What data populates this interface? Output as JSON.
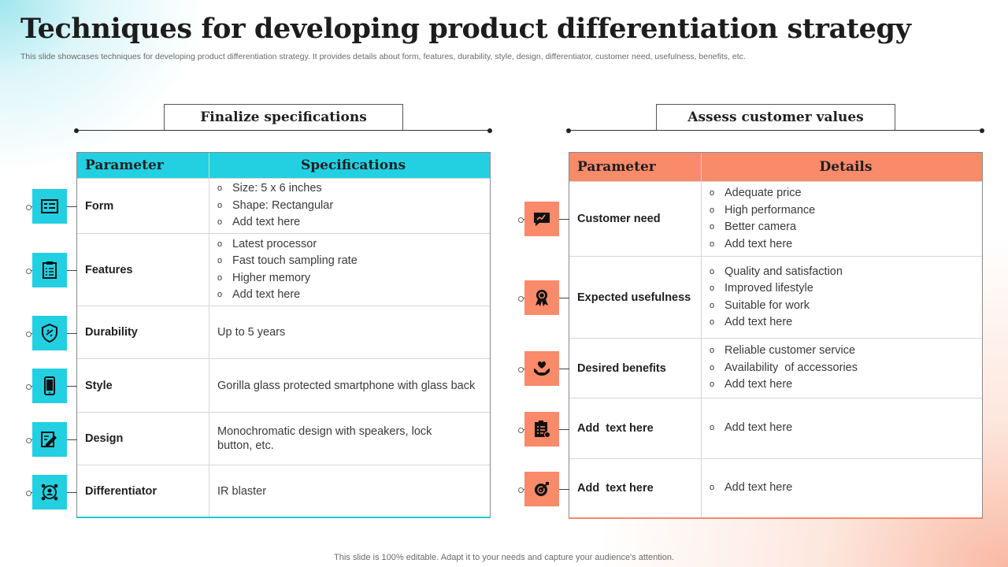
{
  "title": "Techniques for developing product differentiation strategy",
  "subtitle": "This slide showcases techniques for developing product differentiation strategy. It provides details about form, features, durability, style, design, differentiator, customer need, usefulness, benefits, etc.",
  "footer": "This slide is 100% editable. Adapt it to your needs and capture your audience's attention.",
  "colors": {
    "cyan_accent": "#22d0e2",
    "orange_accent": "#f98a6a"
  },
  "left": {
    "section_title": "Finalize specifications",
    "header": {
      "col1": "Parameter",
      "col2": "Specifications"
    },
    "rows": [
      {
        "icon": "form-icon",
        "parameter": "Form",
        "items": [
          "Size: 5 x 6 inches",
          "Shape: Rectangular",
          "Add text here"
        ]
      },
      {
        "icon": "clipboard-icon",
        "parameter": "Features",
        "items": [
          "Latest processor",
          "Fast touch sampling rate",
          "Higher memory",
          "Add text here"
        ]
      },
      {
        "icon": "shield-icon",
        "parameter": "Durability",
        "text": "Up to 5 years"
      },
      {
        "icon": "smartphone-icon",
        "parameter": "Style",
        "text": "Gorilla glass protected smartphone with glass back"
      },
      {
        "icon": "design-icon",
        "parameter": "Design",
        "text": "Monochromatic design with speakers, lock button, etc."
      },
      {
        "icon": "network-user-icon",
        "parameter": "Differentiator",
        "text": "IR blaster"
      }
    ]
  },
  "right": {
    "section_title": "Assess customer values",
    "header": {
      "col1": "Parameter",
      "col2": "Details"
    },
    "rows": [
      {
        "icon": "chat-chart-icon",
        "parameter": "Customer need",
        "items": [
          "Adequate price",
          "High performance",
          "Better camera",
          "Add text here"
        ]
      },
      {
        "icon": "award-ribbon-icon",
        "parameter": "Expected usefulness",
        "items": [
          "Quality and satisfaction",
          "Improved lifestyle",
          "Suitable for work",
          "Add text here"
        ]
      },
      {
        "icon": "hand-heart-icon",
        "parameter": "Desired benefits",
        "items": [
          "Reliable customer service",
          "Availability  of accessories",
          "Add text here"
        ]
      },
      {
        "icon": "checklist-icon",
        "parameter": "Add  text here",
        "items": [
          "Add text here"
        ]
      },
      {
        "icon": "target-icon",
        "parameter": "Add  text here",
        "items": [
          "Add text here"
        ]
      }
    ]
  }
}
